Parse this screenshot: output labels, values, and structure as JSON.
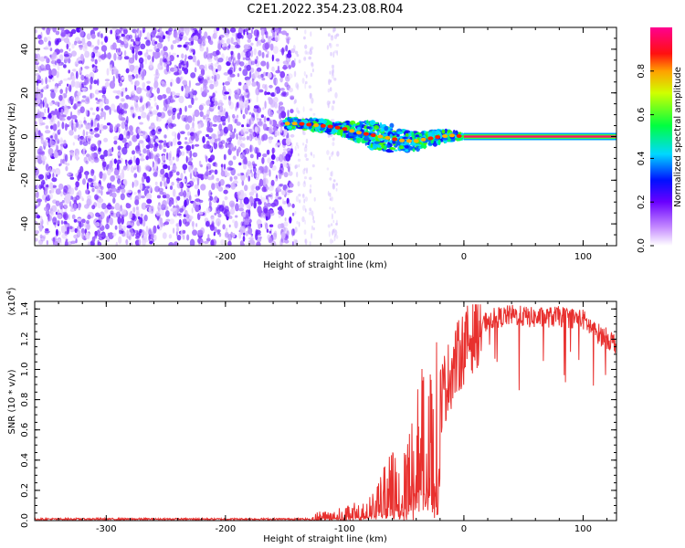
{
  "title": "C2E1.2022.354.23.08.R04",
  "chart_data": [
    {
      "type": "heatmap",
      "xlabel": "Height of straight line (km)",
      "ylabel": "Frequency (Hz)",
      "xlim": [
        -360,
        128
      ],
      "ylim": [
        -50,
        50
      ],
      "x_ticks": [
        -300,
        -200,
        -100,
        0,
        100
      ],
      "y_ticks": [
        -40,
        -20,
        0,
        20,
        40
      ],
      "noise_region": {
        "x_range": [
          -360,
          -143
        ],
        "y_range": [
          -50,
          50
        ],
        "color": "purple",
        "density": "high"
      },
      "sparse_noise_region": {
        "x_range": [
          -143,
          -100
        ],
        "density": "low"
      },
      "signal_track": [
        {
          "x": -150,
          "y": 6
        },
        {
          "x": -140,
          "y": 6
        },
        {
          "x": -130,
          "y": 5.5
        },
        {
          "x": -120,
          "y": 5
        },
        {
          "x": -110,
          "y": 4.5
        },
        {
          "x": -100,
          "y": 3.5
        },
        {
          "x": -90,
          "y": 2
        },
        {
          "x": -80,
          "y": 1
        },
        {
          "x": -70,
          "y": 0
        },
        {
          "x": -60,
          "y": -1
        },
        {
          "x": -50,
          "y": -2
        },
        {
          "x": -40,
          "y": -2
        },
        {
          "x": -30,
          "y": -1
        },
        {
          "x": -20,
          "y": 0
        },
        {
          "x": -10,
          "y": 0.5
        },
        {
          "x": 0,
          "y": 0
        },
        {
          "x": 128,
          "y": 0
        }
      ],
      "signal_spread": [
        {
          "x": -150,
          "halfwidth": 2
        },
        {
          "x": -100,
          "halfwidth": 3
        },
        {
          "x": -80,
          "halfwidth": 6
        },
        {
          "x": -60,
          "halfwidth": 6
        },
        {
          "x": -40,
          "halfwidth": 4
        },
        {
          "x": -10,
          "halfwidth": 2
        },
        {
          "x": 0,
          "halfwidth": 1.5
        },
        {
          "x": 128,
          "halfwidth": 1.5
        }
      ],
      "colorbar": {
        "label": "Normalized spectral amplitude",
        "ticks": [
          0.0,
          0.2,
          0.4,
          0.6,
          0.8
        ],
        "range": [
          0,
          1
        ],
        "colors": [
          "#ffffff",
          "#a040ff",
          "#3000ff",
          "#00e0ff",
          "#00ff30",
          "#ffff00",
          "#ff0000",
          "#ff00a0"
        ]
      }
    },
    {
      "type": "line",
      "xlabel": "Height of straight line (km)",
      "ylabel": "SNR (10 * v/v)",
      "y_scale_note": "(x10",
      "y_scale_exp": "4",
      "y_scale_close": ")",
      "xlim": [
        -360,
        128
      ],
      "ylim": [
        0,
        1.45
      ],
      "x_ticks": [
        -300,
        -200,
        -100,
        0,
        100
      ],
      "y_ticks": [
        0.0,
        0.2,
        0.4,
        0.6,
        0.8,
        1.0,
        1.2,
        1.4
      ],
      "y_tick_labels": [
        "0.0",
        "0.2",
        "0.4",
        "0.6",
        "0.8",
        "1.0",
        "1.2",
        "1.4"
      ],
      "color": "#e8302e",
      "series": [
        {
          "values_envelope": [
            {
              "x": -360,
              "y": 0.01
            },
            {
              "x": -130,
              "y": 0.01
            },
            {
              "x": -120,
              "y": 0.04
            },
            {
              "x": -100,
              "y": 0.05
            },
            {
              "x": -80,
              "y": 0.08
            },
            {
              "x": -60,
              "y": 0.25
            },
            {
              "x": -50,
              "y": 0.35
            },
            {
              "x": -40,
              "y": 0.5
            },
            {
              "x": -30,
              "y": 0.6
            },
            {
              "x": -20,
              "y": 0.8
            },
            {
              "x": -10,
              "y": 1.0
            },
            {
              "x": 0,
              "y": 1.15
            },
            {
              "x": 10,
              "y": 1.25
            },
            {
              "x": 20,
              "y": 1.33
            },
            {
              "x": 40,
              "y": 1.36
            },
            {
              "x": 60,
              "y": 1.34
            },
            {
              "x": 80,
              "y": 1.35
            },
            {
              "x": 100,
              "y": 1.33
            },
            {
              "x": 110,
              "y": 1.25
            },
            {
              "x": 128,
              "y": 1.17
            }
          ]
        }
      ]
    }
  ]
}
